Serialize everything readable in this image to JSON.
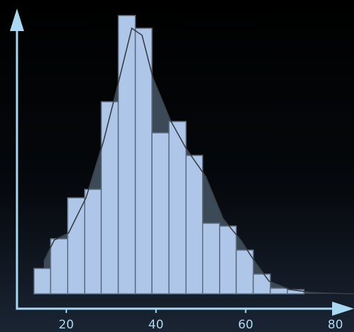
{
  "chart_data": {
    "type": "histogram",
    "bins": [
      12.8,
      16.5,
      20.3,
      24.1,
      27.8,
      31.6,
      35.4,
      39.1,
      42.9,
      46.7,
      50.4,
      54.2,
      57.9,
      61.7,
      65.5,
      69.3,
      73.0
    ],
    "values": [
      9,
      19.5,
      34,
      37,
      68,
      98.5,
      94,
      57,
      61,
      49,
      25,
      24,
      15.5,
      7,
      2,
      1.5
    ],
    "color": "#aec6e8",
    "edge_color": "#5b6b82",
    "curve": {
      "x": [
        15.0,
        17.3,
        20.5,
        24.4,
        28.3,
        31.5,
        34.6,
        36.9,
        39.3,
        43.2,
        46.7,
        51.1,
        55.0,
        58.9,
        62.0,
        65.2,
        69.9,
        74.6,
        79.3,
        84.0
      ],
      "values": [
        11.5,
        19,
        21.5,
        34,
        54,
        74,
        94,
        91.5,
        76.5,
        61.5,
        51.5,
        41.5,
        26.5,
        19,
        11.5,
        4.5,
        1.5,
        0.5,
        0.2,
        0
      ],
      "color": "#3a3f46",
      "fill": "#3c4a58"
    },
    "xlim": [
      9,
      84
    ],
    "xticks": [
      20,
      40,
      60,
      80
    ],
    "ylim": [
      0,
      100
    ],
    "axis_color": "#a9d9f2"
  }
}
